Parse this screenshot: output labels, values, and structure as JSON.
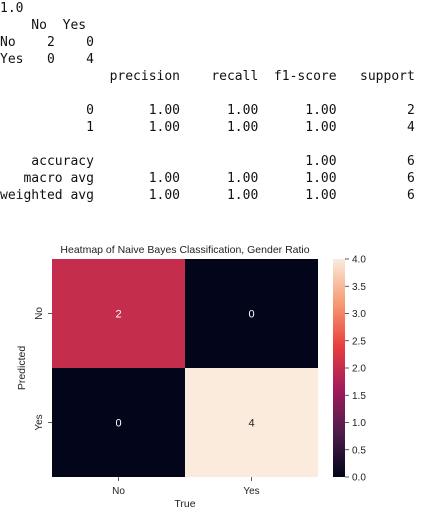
{
  "output": {
    "lines": [
      "1.0",
      "    No  Yes",
      "No    2    0",
      "Yes   0    4",
      "              precision    recall  f1-score   support",
      "",
      "           0       1.00      1.00      1.00         2",
      "           1       1.00      1.00      1.00         4",
      "",
      "    accuracy                           1.00         6",
      "   macro avg       1.00      1.00      1.00         6",
      "weighted avg       1.00      1.00      1.00         6"
    ]
  },
  "chart_data": {
    "type": "heatmap",
    "title": "Heatmap of Naive Bayes Classification, Gender Ratio",
    "xlabel": "True",
    "ylabel": "Predicted",
    "x_categories": [
      "No",
      "Yes"
    ],
    "y_categories": [
      "No",
      "Yes"
    ],
    "values": [
      [
        2,
        0
      ],
      [
        0,
        4
      ]
    ],
    "annotations": [
      [
        "2",
        "0"
      ],
      [
        "0",
        "4"
      ]
    ],
    "colorbar": {
      "range": [
        0.0,
        4.0
      ],
      "ticks": [
        0.0,
        0.5,
        1.0,
        1.5,
        2.0,
        2.5,
        3.0,
        3.5,
        4.0
      ],
      "tick_labels": [
        "0.0",
        "0.5",
        "1.0",
        "1.5",
        "2.0",
        "2.5",
        "3.0",
        "3.5",
        "4.0"
      ],
      "colormap": "rocket",
      "stops": [
        "#03051a",
        "#4c1d4b",
        "#a11a5b",
        "#e83f3f",
        "#f69c73",
        "#faebdd"
      ]
    },
    "grid": false,
    "legend": "colorbar-right"
  }
}
